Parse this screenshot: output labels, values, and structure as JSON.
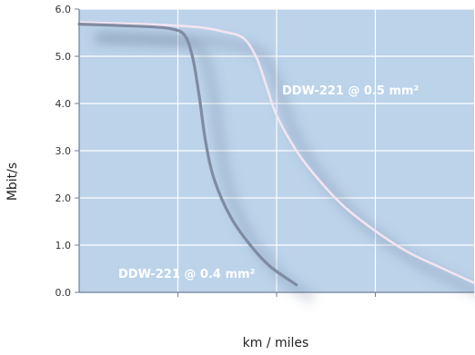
{
  "chart_data": {
    "type": "line",
    "xlabel": "km / miles",
    "ylabel": "Mbit/s",
    "ylim": [
      0,
      6
    ],
    "yticks": [
      "0.0",
      "1.0",
      "2.0",
      "3.0",
      "4.0",
      "5.0",
      "6.0"
    ],
    "ytick_values": [
      0,
      1,
      2,
      3,
      4,
      5,
      6
    ],
    "xticks_labels_shown": false,
    "grid": true,
    "colors": {
      "plot_background": "#bcd3ea",
      "grid": "#ffffff",
      "series_05": "#f3e4f0",
      "series_04": "#7f8ba3"
    },
    "series": [
      {
        "name": "DDW-221 @ 0.5 mm²",
        "points": [
          [
            0,
            5.72
          ],
          [
            1.0,
            5.68
          ],
          [
            1.8,
            5.62
          ],
          [
            2.2,
            5.52
          ],
          [
            2.5,
            5.38
          ],
          [
            2.7,
            4.95
          ],
          [
            2.85,
            4.35
          ],
          [
            3.0,
            3.75
          ],
          [
            3.3,
            3.0
          ],
          [
            3.6,
            2.45
          ],
          [
            4.0,
            1.85
          ],
          [
            4.5,
            1.3
          ],
          [
            5.0,
            0.85
          ],
          [
            5.5,
            0.52
          ],
          [
            6.0,
            0.2
          ]
        ]
      },
      {
        "name": "DDW-221 @ 0.4 mm²",
        "points": [
          [
            0,
            5.68
          ],
          [
            1.0,
            5.63
          ],
          [
            1.4,
            5.58
          ],
          [
            1.6,
            5.45
          ],
          [
            1.72,
            5.0
          ],
          [
            1.82,
            4.2
          ],
          [
            1.92,
            3.2
          ],
          [
            2.05,
            2.4
          ],
          [
            2.3,
            1.6
          ],
          [
            2.6,
            1.0
          ],
          [
            2.9,
            0.55
          ],
          [
            3.3,
            0.16
          ]
        ]
      }
    ]
  }
}
